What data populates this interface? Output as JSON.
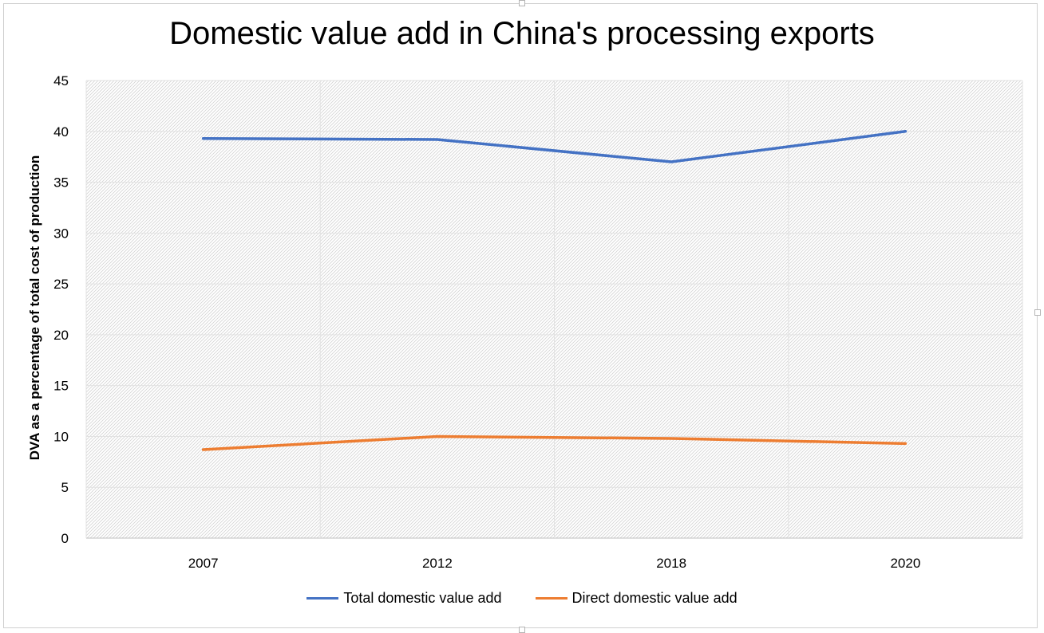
{
  "chart_data": {
    "type": "line",
    "title": "Domestic value add in China's processing exports",
    "xlabel": "",
    "ylabel": "DVA as a percentage of total cost of production",
    "categories": [
      "2007",
      "2012",
      "2018",
      "2020"
    ],
    "ylim": [
      0,
      45
    ],
    "yticks": [
      0,
      5,
      10,
      15,
      20,
      25,
      30,
      35,
      40,
      45
    ],
    "grid": true,
    "legend_position": "bottom",
    "series": [
      {
        "name": "Total domestic value add",
        "values": [
          39.3,
          39.2,
          37.0,
          40.0
        ],
        "color": "#4472c4"
      },
      {
        "name": "Direct domestic value add",
        "values": [
          8.7,
          10.0,
          9.8,
          9.3
        ],
        "color": "#ed7d31"
      }
    ]
  }
}
